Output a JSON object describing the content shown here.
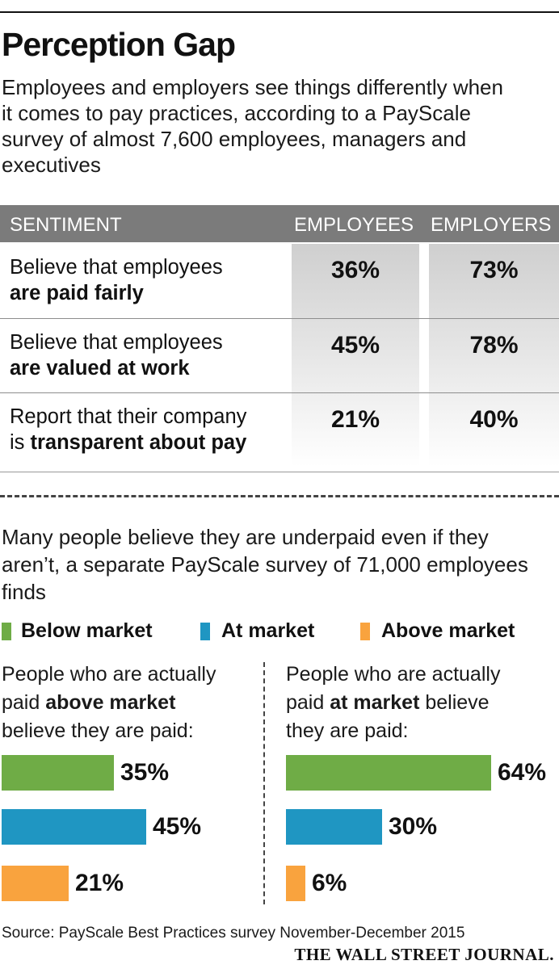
{
  "title": "Perception Gap",
  "subtitle": "Employees and employers see things differently when it comes to pay practices, according to a PayScale survey of almost 7,600 employees, managers and executives",
  "table": {
    "headers": [
      "SENTIMENT",
      "EMPLOYEES",
      "EMPLOYERS"
    ],
    "rows": [
      {
        "text_plain": "Believe that employees",
        "text_bold": "are paid fairly",
        "employees": "36%",
        "employers": "73%"
      },
      {
        "text_plain": "Believe that employees",
        "text_bold": "are valued at work",
        "employees": "45%",
        "employers": "78%"
      },
      {
        "text_plain": "Report that their company",
        "text_prefix": "is ",
        "text_bold": "transparent about pay",
        "employees": "21%",
        "employers": "40%"
      }
    ]
  },
  "section2": {
    "intro": "Many people believe they are underpaid even if they aren’t, a separate PayScale survey of 71,000 employees finds",
    "legend": [
      {
        "label": "Below market",
        "color": "#6fac46"
      },
      {
        "label": "At market",
        "color": "#1f96c2"
      },
      {
        "label": "Above market",
        "color": "#f9a33e"
      }
    ],
    "left_panel": {
      "line1": "People who are actually",
      "line2_prefix": "paid ",
      "line2_bold": "above market",
      "line3": "believe they are paid:"
    },
    "right_panel": {
      "line1": "People who are actually",
      "line2_prefix": "paid ",
      "line2_bold": "at market",
      "line2_suffix": " believe",
      "line3": "they are paid:"
    }
  },
  "chart_data": [
    {
      "type": "bar",
      "orientation": "horizontal",
      "title": "People who are actually paid above market believe they are paid:",
      "categories": [
        "Below market",
        "At market",
        "Above market"
      ],
      "values": [
        35,
        45,
        21
      ],
      "labels": [
        "35%",
        "45%",
        "21%"
      ],
      "colors": [
        "#6fac46",
        "#1f96c2",
        "#f9a33e"
      ],
      "unit": "%"
    },
    {
      "type": "bar",
      "orientation": "horizontal",
      "title": "People who are actually paid at market believe they are paid:",
      "categories": [
        "Below market",
        "At market",
        "Above market"
      ],
      "values": [
        64,
        30,
        6
      ],
      "labels": [
        "64%",
        "30%",
        "6%"
      ],
      "colors": [
        "#6fac46",
        "#1f96c2",
        "#f9a33e"
      ],
      "unit": "%"
    }
  ],
  "source": "Source: PayScale Best Practices survey November-December 2015",
  "publisher": "THE WALL STREET JOURNAL."
}
